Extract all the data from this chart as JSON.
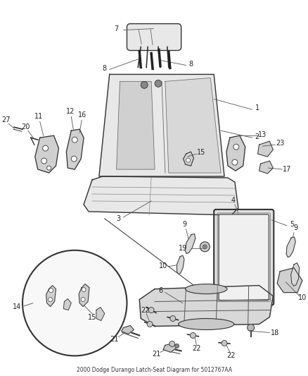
{
  "title": "2000 Dodge Durango Latch-Seat Diagram for 5012767AA",
  "background_color": "#ffffff",
  "fig_width": 4.38,
  "fig_height": 5.33,
  "dpi": 100,
  "label_fontsize": 7,
  "line_color": "#333333",
  "fill_light": "#e8e8e8",
  "fill_mid": "#d0d0d0"
}
